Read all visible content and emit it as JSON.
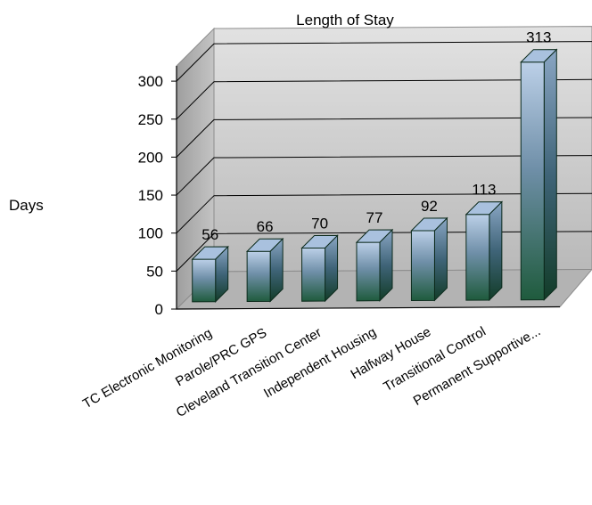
{
  "chart_data": {
    "type": "bar",
    "title": "Length of Stay",
    "ylabel": "Days",
    "xlabel": "",
    "categories": [
      "TC Electronic Monitoring",
      "Parole/PRC GPS",
      "Cleveland Transition Center",
      "Independent Housing",
      "Halfway House",
      "Transitional Control",
      "Permanent Supportive..."
    ],
    "values": [
      56,
      66,
      70,
      77,
      92,
      113,
      313
    ],
    "ylim": [
      0,
      300
    ],
    "yticks": [
      "0",
      "50",
      "100",
      "150",
      "200",
      "250",
      "300"
    ],
    "grid": true,
    "legend": "none",
    "colors": {
      "bar_top": "#b9cde6",
      "bar_bottom": "#1e5a3c",
      "wall": "#c8c8c8",
      "floor": "#b4b4b4",
      "grid": "#000000"
    }
  }
}
